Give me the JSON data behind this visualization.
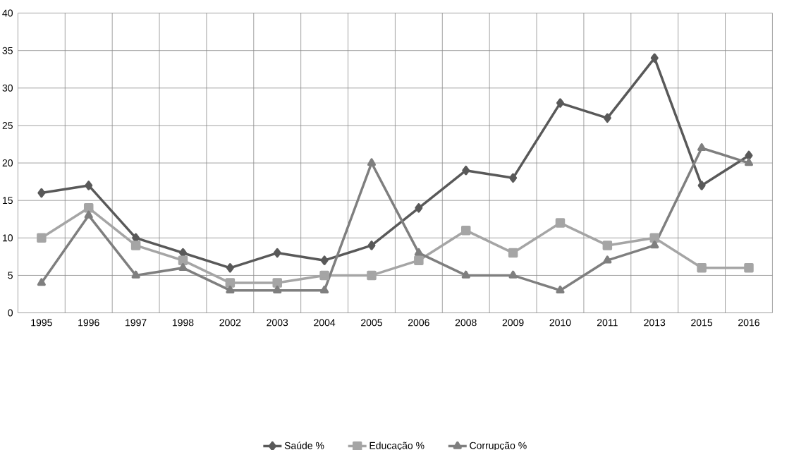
{
  "chart_data": {
    "type": "line",
    "categories": [
      "1995",
      "1996",
      "1997",
      "1998",
      "2002",
      "2003",
      "2004",
      "2005",
      "2006",
      "2008",
      "2009",
      "2010",
      "2011",
      "2013",
      "2015",
      "2016"
    ],
    "series": [
      {
        "name": "Saúde %",
        "color": "#595959",
        "marker": "diamond",
        "values": [
          16,
          17,
          10,
          8,
          6,
          8,
          7,
          9,
          14,
          19,
          18,
          28,
          26,
          34,
          17,
          21
        ]
      },
      {
        "name": "Educação %",
        "color": "#a5a5a5",
        "marker": "square",
        "values": [
          10,
          14,
          9,
          7,
          4,
          4,
          5,
          5,
          7,
          11,
          8,
          12,
          9,
          10,
          6,
          6
        ]
      },
      {
        "name": "Corrupção %",
        "color": "#7f7f7f",
        "marker": "triangle",
        "values": [
          4,
          13,
          5,
          6,
          3,
          3,
          3,
          20,
          8,
          5,
          5,
          3,
          7,
          9,
          22,
          20
        ]
      }
    ],
    "ylim": [
      0,
      40
    ],
    "yticks": [
      0,
      5,
      10,
      15,
      20,
      25,
      30,
      35,
      40
    ],
    "grid": true,
    "legend": "bottom",
    "line_style": "solid"
  }
}
